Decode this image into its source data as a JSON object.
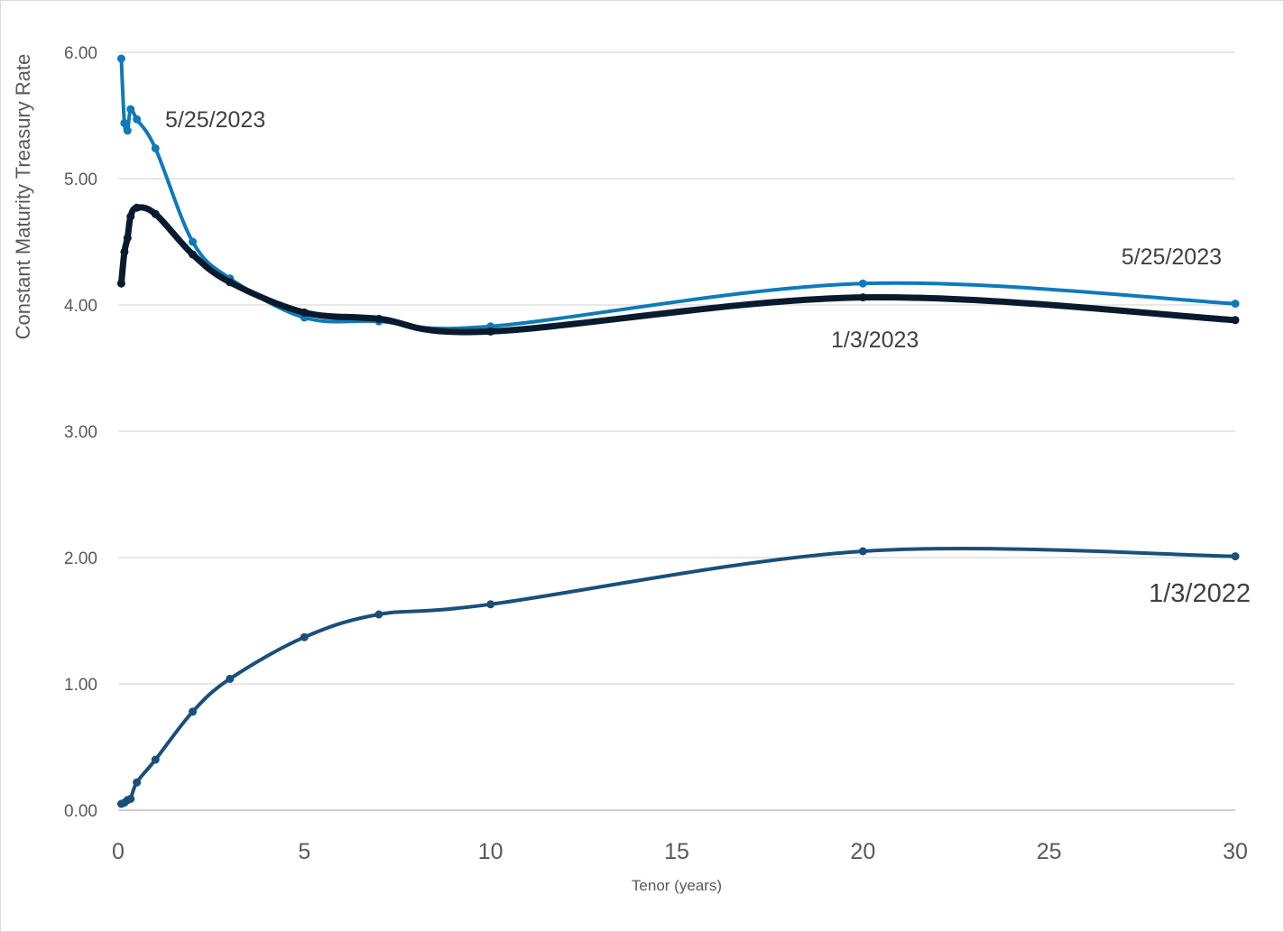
{
  "chart_data": {
    "type": "line",
    "xlabel": "Tenor (years)",
    "ylabel": "Constant Maturity Treasury Rate",
    "xlim": [
      0,
      30
    ],
    "ylim": [
      0,
      6
    ],
    "x_ticks": [
      "0",
      "5",
      "10",
      "15",
      "20",
      "25",
      "30"
    ],
    "y_ticks": [
      "0.00",
      "1.00",
      "2.00",
      "3.00",
      "4.00",
      "5.00",
      "6.00"
    ],
    "grid": "horizontal",
    "legend": "none",
    "series": [
      {
        "color": "#0f7ab8",
        "points": [
          [
            0.083,
            5.95
          ],
          [
            0.167,
            5.44
          ],
          [
            0.25,
            5.38
          ],
          [
            0.333,
            5.55
          ],
          [
            0.5,
            5.47
          ],
          [
            1,
            5.24
          ],
          [
            2,
            4.5
          ],
          [
            3,
            4.21
          ],
          [
            5,
            3.9
          ],
          [
            7,
            3.87
          ],
          [
            10,
            3.83
          ],
          [
            20,
            4.17
          ],
          [
            30,
            4.01
          ]
        ]
      },
      {
        "color": "#0a1a2e",
        "points": [
          [
            0.083,
            4.17
          ],
          [
            0.167,
            4.42
          ],
          [
            0.25,
            4.53
          ],
          [
            0.333,
            4.7
          ],
          [
            0.5,
            4.77
          ],
          [
            1,
            4.72
          ],
          [
            2,
            4.4
          ],
          [
            3,
            4.18
          ],
          [
            5,
            3.94
          ],
          [
            7,
            3.89
          ],
          [
            10,
            3.79
          ],
          [
            20,
            4.06
          ],
          [
            30,
            3.88
          ]
        ]
      },
      {
        "color": "#1a4f7a",
        "points": [
          [
            0.083,
            0.05
          ],
          [
            0.167,
            0.06
          ],
          [
            0.25,
            0.08
          ],
          [
            0.333,
            0.09
          ],
          [
            0.5,
            0.22
          ],
          [
            1,
            0.4
          ],
          [
            2,
            0.78
          ],
          [
            3,
            1.04
          ],
          [
            5,
            1.37
          ],
          [
            7,
            1.55
          ],
          [
            10,
            1.63
          ],
          [
            20,
            2.05
          ],
          [
            30,
            2.01
          ]
        ]
      }
    ],
    "annotations": [
      {
        "text": "5/25/2023",
        "near_series": 0,
        "position": "upper-left"
      },
      {
        "text": "5/25/2023",
        "near_series": 0,
        "position": "right"
      },
      {
        "text": "1/3/2023",
        "near_series": 1,
        "position": "right-middle"
      },
      {
        "text": "1/3/2022",
        "near_series": 2,
        "position": "right"
      }
    ]
  }
}
